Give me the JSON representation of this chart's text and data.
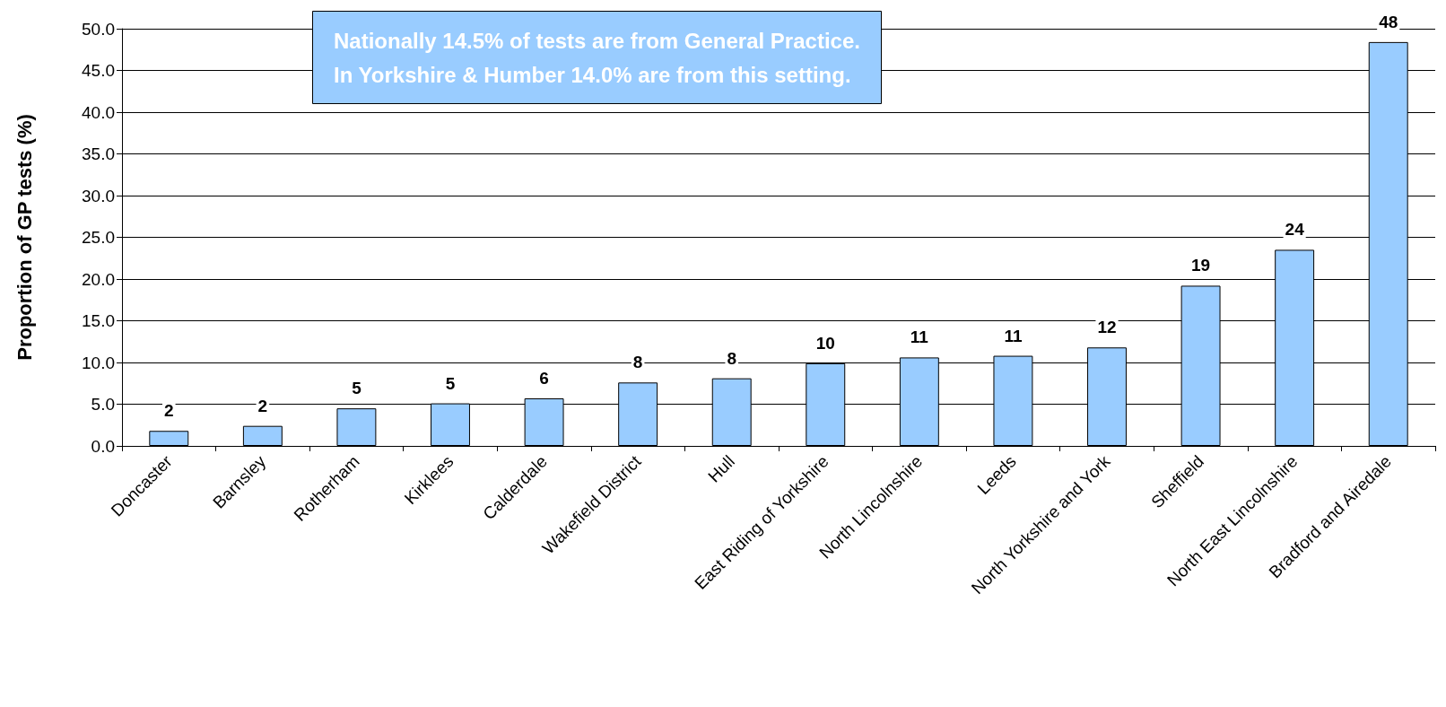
{
  "chart_data": {
    "type": "bar",
    "ylabel": "Proportion of GP tests (%)",
    "categories": [
      "Doncaster",
      "Barnsley",
      "Rotherham",
      "Kirklees",
      "Calderdale",
      "Wakefield District",
      "Hull",
      "East Riding of Yorkshire",
      "North Lincolnshire",
      "Leeds",
      "North Yorkshire and York",
      "Sheffield",
      "North East Lincolnshire",
      "Bradford and Airedale"
    ],
    "values": [
      1.8,
      2.4,
      4.5,
      5.1,
      5.7,
      7.6,
      8.1,
      9.9,
      10.6,
      10.8,
      11.8,
      19.2,
      23.5,
      48.4
    ],
    "value_labels": [
      "2",
      "2",
      "5",
      "5",
      "6",
      "8",
      "8",
      "10",
      "11",
      "11",
      "12",
      "19",
      "24",
      "48"
    ],
    "color": "#99ccff",
    "ylim": [
      0,
      50
    ],
    "yticks": [
      {
        "value": 0,
        "label": "0.0"
      },
      {
        "value": 5,
        "label": "5.0"
      },
      {
        "value": 10,
        "label": "10.0"
      },
      {
        "value": 15,
        "label": "15.0"
      },
      {
        "value": 20,
        "label": "20.0"
      },
      {
        "value": 25,
        "label": "25.0"
      },
      {
        "value": 30,
        "label": "30.0"
      },
      {
        "value": 35,
        "label": "35.0"
      },
      {
        "value": 40,
        "label": "40.0"
      },
      {
        "value": 45,
        "label": "45.0"
      },
      {
        "value": 50,
        "label": "50.0"
      }
    ],
    "grid": "y",
    "annotations": [
      "Nationally 14.5% of tests are from General Practice.\nIn Yorkshire & Humber 14.0% are from this setting."
    ]
  }
}
